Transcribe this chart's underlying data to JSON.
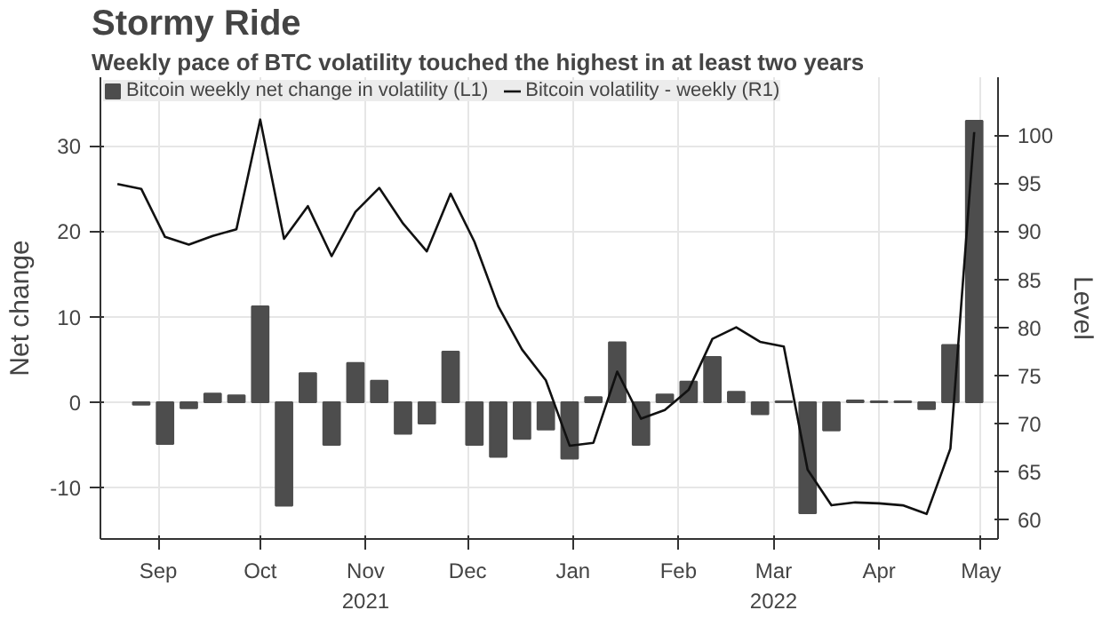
{
  "chart_data": {
    "type": "bar",
    "title": "Stormy Ride",
    "subtitle": "Weekly pace of BTC volatility touched the highest in at least two years",
    "ylabel": "Net change",
    "y2label": "Level",
    "x": [
      "2021-09-10",
      "2021-09-17",
      "2021-09-24",
      "2021-10-01",
      "2021-10-08",
      "2021-10-15",
      "2021-10-22",
      "2021-10-29",
      "2021-11-05",
      "2021-11-12",
      "2021-11-19",
      "2021-11-26",
      "2021-12-03",
      "2021-12-10",
      "2021-12-17",
      "2021-12-24",
      "2021-12-31",
      "2022-01-07",
      "2022-01-14",
      "2022-01-21",
      "2022-01-28",
      "2022-02-04",
      "2022-02-11",
      "2022-02-18",
      "2022-02-25",
      "2022-03-04",
      "2022-03-11",
      "2022-03-18",
      "2022-03-25",
      "2022-04-01",
      "2022-04-08",
      "2022-04-15",
      "2022-04-22",
      "2022-04-29",
      "2022-05-06",
      "2022-05-13"
    ],
    "series": [
      {
        "name": "Bitcoin weekly net change in volatility (L1)",
        "color": "#4d4d4d",
        "values": [
          -0.3,
          -4.9,
          -0.7,
          1.0,
          0.8,
          11.2,
          -12.1,
          3.4,
          -5.0,
          4.6,
          2.5,
          -3.7,
          -2.5,
          5.9,
          -5.0,
          -6.4,
          -4.3,
          -3.2,
          -6.6,
          0.6,
          7.0,
          -5.0,
          0.9,
          2.4,
          5.3,
          1.2,
          -1.4,
          0.1,
          -13.0,
          -3.3,
          0.2,
          0.1,
          0.1,
          -0.8,
          6.7,
          32.9
        ]
      },
      {
        "name": "Bitcoin volatility - weekly (R1)",
        "type": "line",
        "axis": "y2",
        "color": "#111111",
        "x": [
          "2021-09-03",
          "2021-09-10",
          "2021-09-17",
          "2021-09-24",
          "2021-10-01",
          "2021-10-08",
          "2021-10-15",
          "2021-10-22",
          "2021-10-29",
          "2021-11-05",
          "2021-11-12",
          "2021-11-19",
          "2021-11-26",
          "2021-12-03",
          "2021-12-10",
          "2021-12-17",
          "2021-12-24",
          "2021-12-31",
          "2022-01-07",
          "2022-01-14",
          "2022-01-21",
          "2022-01-28",
          "2022-02-04",
          "2022-02-11",
          "2022-02-18",
          "2022-02-25",
          "2022-03-04",
          "2022-03-11",
          "2022-03-18",
          "2022-03-25",
          "2022-04-01",
          "2022-04-08",
          "2022-04-15",
          "2022-04-22",
          "2022-04-29",
          "2022-05-06",
          "2022-05-13"
        ],
        "values": [
          94.9,
          94.4,
          89.4,
          88.6,
          89.5,
          90.2,
          101.6,
          89.2,
          92.6,
          87.4,
          92.0,
          94.5,
          90.8,
          87.9,
          93.9,
          88.9,
          82.2,
          77.7,
          74.5,
          67.7,
          68.0,
          75.4,
          70.5,
          71.4,
          73.5,
          78.8,
          80.0,
          78.5,
          78.0,
          65.2,
          61.5,
          61.8,
          61.7,
          61.5,
          60.6,
          67.4,
          100.3
        ]
      }
    ],
    "xlim": [
      "2021-08-29",
      "2022-05-20"
    ],
    "xticks": [
      {
        "value": "2021-09-15",
        "label": "Sep"
      },
      {
        "value": "2021-10-15",
        "label": "Oct"
      },
      {
        "value": "2021-11-15",
        "label": "Nov\n2021"
      },
      {
        "value": "2021-12-15",
        "label": "Dec"
      },
      {
        "value": "2022-01-15",
        "label": "Jan"
      },
      {
        "value": "2022-02-15",
        "label": "Feb"
      },
      {
        "value": "2022-03-15",
        "label": "Mar\n2022"
      },
      {
        "value": "2022-04-15",
        "label": "Apr"
      },
      {
        "value": "2022-05-15",
        "label": "May"
      }
    ],
    "ylim": [
      -16,
      38
    ],
    "yticks": [
      -10,
      0,
      10,
      20,
      30
    ],
    "y2lim": [
      58,
      106
    ],
    "y2ticks": [
      60,
      65,
      70,
      75,
      80,
      85,
      90,
      95,
      100
    ],
    "grid": true,
    "legend": "top left"
  }
}
